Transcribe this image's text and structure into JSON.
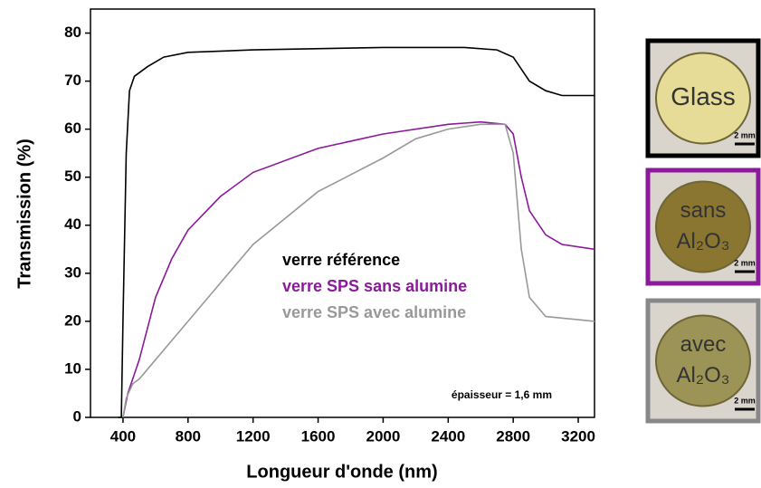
{
  "chart_data": {
    "type": "line",
    "x_label": "Longueur d'onde (nm)",
    "y_label": "Transmission (%)",
    "xlim": [
      200,
      3300
    ],
    "ylim": [
      0,
      85
    ],
    "xticks": [
      400,
      800,
      1200,
      1600,
      2000,
      2400,
      2800,
      3200
    ],
    "yticks": [
      0,
      10,
      20,
      30,
      40,
      50,
      60,
      70,
      80
    ],
    "annotation": "épaisseur = 1,6 mm",
    "series": [
      {
        "name": "verre référence",
        "color": "#000000",
        "x": [
          370,
          390,
          400,
          420,
          440,
          470,
          550,
          650,
          800,
          1200,
          2000,
          2500,
          2700,
          2800,
          2900,
          3000,
          3100,
          3300
        ],
        "values": [
          0,
          0,
          20,
          55,
          68,
          71,
          73,
          75,
          76,
          76.5,
          77,
          77,
          76.5,
          75,
          70,
          68,
          67,
          67
        ]
      },
      {
        "name": "verre SPS sans alumine",
        "color": "#8b1a9a",
        "x": [
          400,
          430,
          500,
          600,
          700,
          800,
          1000,
          1200,
          1600,
          2000,
          2400,
          2600,
          2750,
          2800,
          2850,
          2900,
          3000,
          3100,
          3300
        ],
        "values": [
          0,
          5,
          12,
          25,
          33,
          39,
          46,
          51,
          56,
          59,
          61,
          61.5,
          61,
          59,
          50,
          43,
          38,
          36,
          35
        ]
      },
      {
        "name": "verre SPS avec alumine",
        "color": "#999999",
        "x": [
          400,
          420,
          460,
          500,
          600,
          800,
          1000,
          1200,
          1600,
          2000,
          2200,
          2400,
          2600,
          2750,
          2800,
          2850,
          2900,
          3000,
          3300
        ],
        "values": [
          0,
          4,
          7,
          8,
          12,
          20,
          28,
          36,
          47,
          54,
          58,
          60,
          61,
          61,
          55,
          35,
          25,
          21,
          20
        ]
      }
    ]
  },
  "samples": [
    {
      "lines": [
        "Glass"
      ],
      "scale": "2 mm"
    },
    {
      "lines": [
        "sans",
        "Al₂O₃"
      ],
      "scale": "2 mm"
    },
    {
      "lines": [
        "avec",
        "Al₂O₃"
      ],
      "scale": "2 mm"
    }
  ]
}
